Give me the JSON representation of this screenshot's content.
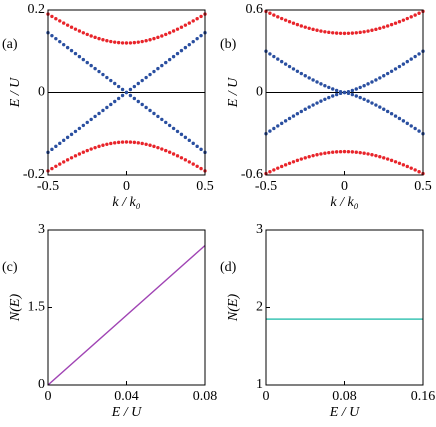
{
  "chart_data": [
    {
      "panel_label": "(a)",
      "type": "scatter",
      "xlabel": "k / k₀",
      "ylabel": "E / U",
      "xlim": [
        -0.5,
        0.5
      ],
      "ylim": [
        -0.2,
        0.2
      ],
      "xticks": [
        -0.5,
        0,
        0.5
      ],
      "yticks": [
        -0.2,
        0,
        0.2
      ],
      "zero_line": true,
      "x": [
        -0.5,
        -0.475,
        -0.45,
        -0.425,
        -0.4,
        -0.375,
        -0.35,
        -0.325,
        -0.3,
        -0.275,
        -0.25,
        -0.225,
        -0.2,
        -0.175,
        -0.15,
        -0.125,
        -0.1,
        -0.075,
        -0.05,
        -0.025,
        0,
        0.025,
        0.05,
        0.075,
        0.1,
        0.125,
        0.15,
        0.175,
        0.2,
        0.225,
        0.25,
        0.275,
        0.3,
        0.325,
        0.35,
        0.375,
        0.4,
        0.425,
        0.45,
        0.475,
        0.5
      ],
      "series": [
        {
          "color": "#e8242a",
          "values": [
            0.1901,
            0.1845,
            0.1789,
            0.1735,
            0.1683,
            0.1632,
            0.1583,
            0.1536,
            0.1491,
            0.1448,
            0.1408,
            0.1371,
            0.1337,
            0.1306,
            0.1279,
            0.1255,
            0.1236,
            0.122,
            0.1209,
            0.1202,
            0.12,
            0.1202,
            0.1209,
            0.122,
            0.1236,
            0.1255,
            0.1279,
            0.1306,
            0.1337,
            0.1371,
            0.1408,
            0.1448,
            0.1491,
            0.1536,
            0.1583,
            0.1632,
            0.1683,
            0.1735,
            0.1789,
            0.1845,
            0.1901
          ]
        },
        {
          "color": "#e8242a",
          "values": [
            -0.1901,
            -0.1845,
            -0.1789,
            -0.1735,
            -0.1683,
            -0.1632,
            -0.1583,
            -0.1536,
            -0.1491,
            -0.1448,
            -0.1408,
            -0.1371,
            -0.1337,
            -0.1306,
            -0.1279,
            -0.1255,
            -0.1236,
            -0.122,
            -0.1209,
            -0.1202,
            -0.12,
            -0.1202,
            -0.1209,
            -0.122,
            -0.1236,
            -0.1255,
            -0.1279,
            -0.1306,
            -0.1337,
            -0.1371,
            -0.1408,
            -0.1448,
            -0.1491,
            -0.1536,
            -0.1583,
            -0.1632,
            -0.1683,
            -0.1735,
            -0.1789,
            -0.1845,
            -0.1901
          ]
        },
        {
          "color": "#2a4fa0",
          "values": [
            -0.145,
            -0.1378,
            -0.1305,
            -0.1233,
            -0.116,
            -0.1088,
            -0.1015,
            -0.0943,
            -0.087,
            -0.0798,
            -0.0725,
            -0.0653,
            -0.058,
            -0.0508,
            -0.0435,
            -0.0363,
            -0.029,
            -0.0218,
            -0.0145,
            -0.0073,
            0,
            0.0073,
            0.0145,
            0.0218,
            0.029,
            0.0363,
            0.0435,
            0.0508,
            0.058,
            0.0653,
            0.0725,
            0.0798,
            0.087,
            0.0943,
            0.1015,
            0.1088,
            0.116,
            0.1233,
            0.1305,
            0.1378,
            0.145
          ]
        },
        {
          "color": "#2a4fa0",
          "values": [
            0.145,
            0.1378,
            0.1305,
            0.1233,
            0.116,
            0.1088,
            0.1015,
            0.0943,
            0.087,
            0.0798,
            0.0725,
            0.0653,
            0.058,
            0.0508,
            0.0435,
            0.0363,
            0.029,
            0.0218,
            0.0145,
            0.0073,
            0,
            -0.0073,
            -0.0145,
            -0.0218,
            -0.029,
            -0.0363,
            -0.0435,
            -0.0508,
            -0.058,
            -0.0653,
            -0.0725,
            -0.0798,
            -0.087,
            -0.0943,
            -0.1015,
            -0.1088,
            -0.116,
            -0.1233,
            -0.1305,
            -0.1378,
            -0.145
          ]
        }
      ]
    },
    {
      "panel_label": "(b)",
      "type": "scatter",
      "xlabel": "k / k₀",
      "ylabel": "E / U",
      "xlim": [
        -0.5,
        0.5
      ],
      "ylim": [
        -0.6,
        0.6
      ],
      "xticks": [
        -0.5,
        0,
        0.5
      ],
      "yticks": [
        -0.6,
        0,
        0.6
      ],
      "zero_line": true,
      "x": [
        -0.5,
        -0.475,
        -0.45,
        -0.425,
        -0.4,
        -0.375,
        -0.35,
        -0.325,
        -0.3,
        -0.275,
        -0.25,
        -0.225,
        -0.2,
        -0.175,
        -0.15,
        -0.125,
        -0.1,
        -0.075,
        -0.05,
        -0.025,
        0,
        0.025,
        0.05,
        0.075,
        0.1,
        0.125,
        0.15,
        0.175,
        0.2,
        0.225,
        0.25,
        0.275,
        0.3,
        0.325,
        0.35,
        0.375,
        0.4,
        0.425,
        0.45,
        0.475,
        0.5
      ],
      "series": [
        {
          "color": "#e8242a",
          "values": [
            0.59,
            0.5764,
            0.5631,
            0.5503,
            0.5379,
            0.526,
            0.5147,
            0.5038,
            0.4936,
            0.484,
            0.4751,
            0.4669,
            0.4594,
            0.4527,
            0.4468,
            0.4417,
            0.4375,
            0.4342,
            0.4319,
            0.4305,
            0.43,
            0.4305,
            0.4319,
            0.4342,
            0.4375,
            0.4417,
            0.4468,
            0.4527,
            0.4594,
            0.4669,
            0.4751,
            0.484,
            0.4936,
            0.5038,
            0.5147,
            0.526,
            0.5379,
            0.5503,
            0.5631,
            0.5764,
            0.59
          ]
        },
        {
          "color": "#e8242a",
          "values": [
            -0.59,
            -0.5764,
            -0.5631,
            -0.5503,
            -0.5379,
            -0.526,
            -0.5147,
            -0.5038,
            -0.4936,
            -0.484,
            -0.4751,
            -0.4669,
            -0.4594,
            -0.4527,
            -0.4468,
            -0.4417,
            -0.4375,
            -0.4342,
            -0.4319,
            -0.4305,
            -0.43,
            -0.4305,
            -0.4319,
            -0.4342,
            -0.4375,
            -0.4417,
            -0.4468,
            -0.4527,
            -0.4594,
            -0.4669,
            -0.4751,
            -0.484,
            -0.4936,
            -0.5038,
            -0.5147,
            -0.526,
            -0.5379,
            -0.5503,
            -0.5631,
            -0.5764,
            -0.59
          ]
        },
        {
          "color": "#2a4fa0",
          "values": [
            -0.3,
            -0.2807,
            -0.2616,
            -0.2429,
            -0.2245,
            -0.2064,
            -0.1887,
            -0.1714,
            -0.1544,
            -0.1379,
            -0.1218,
            -0.1062,
            -0.0912,
            -0.0766,
            -0.0627,
            -0.0495,
            -0.037,
            -0.0255,
            -0.015,
            -0.0061,
            0,
            0.0061,
            0.015,
            0.0255,
            0.037,
            0.0495,
            0.0627,
            0.0766,
            0.0912,
            0.1062,
            0.1218,
            0.1379,
            0.1544,
            0.1714,
            0.1887,
            0.2064,
            0.2245,
            0.2429,
            0.2616,
            0.2807,
            0.3
          ]
        },
        {
          "color": "#2a4fa0",
          "values": [
            0.3,
            0.2807,
            0.2616,
            0.2429,
            0.2245,
            0.2064,
            0.1887,
            0.1714,
            0.1544,
            0.1379,
            0.1218,
            0.1062,
            0.0912,
            0.0766,
            0.0627,
            0.0495,
            0.037,
            0.0255,
            0.015,
            0.0061,
            0,
            -0.0061,
            -0.015,
            -0.0255,
            -0.037,
            -0.0495,
            -0.0627,
            -0.0766,
            -0.0912,
            -0.1062,
            -0.1218,
            -0.1379,
            -0.1544,
            -0.1714,
            -0.1887,
            -0.2064,
            -0.2245,
            -0.2429,
            -0.2616,
            -0.2807,
            -0.3
          ]
        }
      ]
    },
    {
      "panel_label": "(c)",
      "type": "line",
      "xlabel": "E / U",
      "ylabel": "N(E)",
      "xlim": [
        0,
        0.08
      ],
      "ylim": [
        0,
        3
      ],
      "xticks": [
        0,
        0.04,
        0.08
      ],
      "yticks": [
        0,
        1.5,
        3
      ],
      "x": [
        0,
        0.08
      ],
      "series": [
        {
          "color": "#a044b4",
          "values": [
            0,
            2.7
          ]
        }
      ]
    },
    {
      "panel_label": "(d)",
      "type": "line",
      "xlabel": "E / U",
      "ylabel": "N(E)",
      "xlim": [
        0,
        0.16
      ],
      "ylim": [
        1,
        3
      ],
      "xticks": [
        0,
        0.08,
        0.16
      ],
      "yticks": [
        1,
        2,
        3
      ],
      "x": [
        0,
        0.16
      ],
      "series": [
        {
          "color": "#3cc4b4",
          "values": [
            1.85,
            1.85
          ]
        }
      ]
    }
  ]
}
